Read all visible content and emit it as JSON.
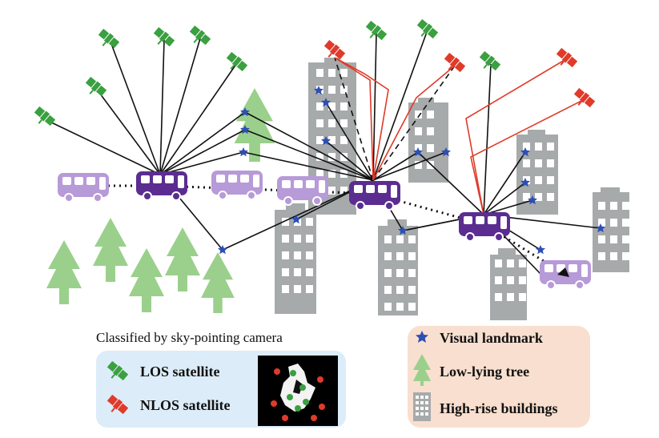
{
  "legend": {
    "caption": "Classified by sky-pointing camera",
    "los_label": "LOS satellite",
    "nlos_label": "NLOS satellite",
    "landmark_label": "Visual landmark",
    "tree_label": "Low-lying tree",
    "building_label": "High-rise buildings"
  },
  "colors": {
    "los": "#3aa040",
    "nlos": "#e03a2a",
    "bus_active": "#5b2d90",
    "bus_past": "#b79ad8",
    "building": "#a7aaaa",
    "tree": "#9bd08c",
    "landmark": "#2d4fb3",
    "legend_left_bg": "#dcecf8",
    "legend_right_bg": "#f9dfcf"
  },
  "icons": [
    "satellite-icon",
    "star-icon",
    "tree-icon",
    "building-icon",
    "bus-icon"
  ]
}
